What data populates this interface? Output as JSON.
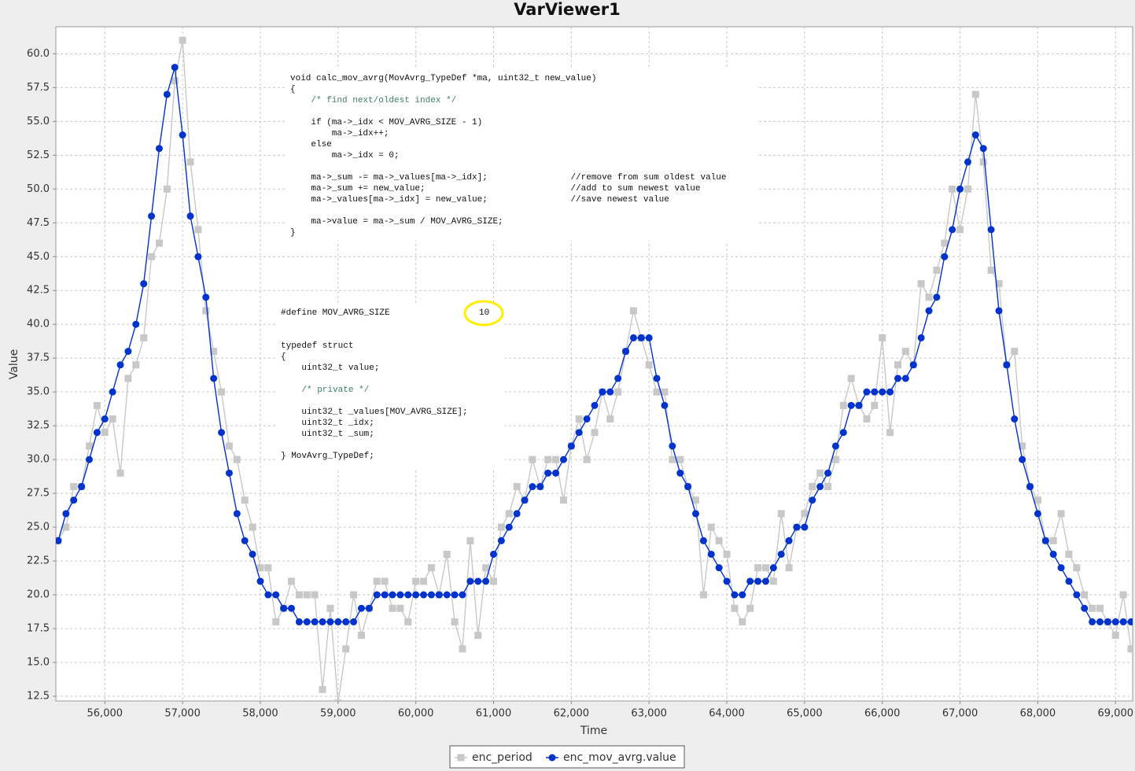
{
  "chart_data": {
    "type": "line",
    "title": "VarViewer1",
    "x_label": "Time",
    "y_label": "Value",
    "x": [
      55400,
      55500,
      55600,
      55700,
      55800,
      55900,
      56000,
      56100,
      56200,
      56300,
      56400,
      56500,
      56600,
      56700,
      56800,
      56900,
      57000,
      57100,
      57200,
      57300,
      57400,
      57500,
      57600,
      57700,
      57800,
      57900,
      58000,
      58100,
      58200,
      58300,
      58400,
      58500,
      58600,
      58700,
      58800,
      58900,
      59000,
      59100,
      59200,
      59300,
      59400,
      59500,
      59600,
      59700,
      59800,
      59900,
      60000,
      60100,
      60200,
      60300,
      60400,
      60500,
      60600,
      60700,
      60800,
      60900,
      61000,
      61100,
      61200,
      61300,
      61400,
      61500,
      61600,
      61700,
      61800,
      61900,
      62000,
      62100,
      62200,
      62300,
      62400,
      62500,
      62600,
      62700,
      62800,
      62900,
      63000,
      63100,
      63200,
      63300,
      63400,
      63500,
      63600,
      63700,
      63800,
      63900,
      64000,
      64100,
      64200,
      64300,
      64400,
      64500,
      64600,
      64700,
      64800,
      64900,
      65000,
      65100,
      65200,
      65300,
      65400,
      65500,
      65600,
      65700,
      65800,
      65900,
      66000,
      66100,
      66200,
      66300,
      66400,
      66500,
      66600,
      66700,
      66800,
      66900,
      67000,
      67100,
      67200,
      67300,
      67400,
      67500,
      67600,
      67700,
      67800,
      67900,
      68000,
      68100,
      68200,
      68300,
      68400,
      68500,
      68600,
      68700,
      68800,
      68900,
      69000,
      69100,
      69200
    ],
    "series": [
      {
        "name": "enc_period",
        "color": "#c8c8c8",
        "marker": "square",
        "values": [
          24,
          25,
          28,
          28,
          31,
          34,
          32,
          33,
          29,
          36,
          37,
          39,
          45,
          46,
          50,
          58,
          61,
          52,
          47,
          41,
          38,
          35,
          31,
          30,
          27,
          25,
          22,
          22,
          18,
          19,
          21,
          20,
          20,
          20,
          13,
          19,
          12,
          16,
          20,
          17,
          19,
          21,
          21,
          19,
          19,
          18,
          21,
          21,
          22,
          20,
          23,
          18,
          16,
          24,
          17,
          22,
          21,
          25,
          26,
          28,
          27,
          30,
          28,
          30,
          30,
          27,
          31,
          33,
          30,
          32,
          35,
          33,
          35,
          38,
          41,
          39,
          37,
          35,
          35,
          30,
          30,
          28,
          27,
          20,
          25,
          24,
          23,
          19,
          18,
          19,
          22,
          22,
          21,
          26,
          22,
          25,
          26,
          28,
          29,
          28,
          30,
          34,
          36,
          34,
          33,
          34,
          39,
          32,
          37,
          38,
          37,
          43,
          42,
          44,
          46,
          50,
          47,
          50,
          57,
          52,
          44,
          43,
          37,
          38,
          31,
          28,
          27,
          24,
          24,
          26,
          23,
          22,
          20,
          19,
          19,
          18,
          17,
          20,
          16
        ]
      },
      {
        "name": "enc_mov_avrg.value",
        "color": "#0033cc",
        "marker": "circle",
        "values": [
          24,
          26,
          27,
          28,
          30,
          32,
          33,
          35,
          37,
          38,
          40,
          43,
          48,
          53,
          57,
          59,
          54,
          48,
          45,
          42,
          36,
          32,
          29,
          26,
          24,
          23,
          21,
          20,
          20,
          19,
          19,
          18,
          18,
          18,
          18,
          18,
          18,
          18,
          18,
          19,
          19,
          20,
          20,
          20,
          20,
          20,
          20,
          20,
          20,
          20,
          20,
          20,
          20,
          21,
          21,
          21,
          23,
          24,
          25,
          26,
          27,
          28,
          28,
          29,
          29,
          30,
          31,
          32,
          33,
          34,
          35,
          35,
          36,
          38,
          39,
          39,
          39,
          36,
          34,
          31,
          29,
          28,
          26,
          24,
          23,
          22,
          21,
          20,
          20,
          21,
          21,
          21,
          22,
          23,
          24,
          25,
          25,
          27,
          28,
          29,
          31,
          32,
          34,
          34,
          35,
          35,
          35,
          35,
          36,
          36,
          37,
          39,
          41,
          42,
          45,
          47,
          50,
          52,
          54,
          53,
          47,
          41,
          37,
          33,
          30,
          28,
          26,
          24,
          23,
          22,
          21,
          20,
          19,
          18,
          18,
          18,
          18,
          18,
          18
        ]
      }
    ],
    "xlim": [
      55370,
      69220
    ],
    "ylim": [
      12.15,
      62
    ],
    "xticks": [
      {
        "value": 56000,
        "label": "56,000"
      },
      {
        "value": 57000,
        "label": "57,000"
      },
      {
        "value": 58000,
        "label": "58,000"
      },
      {
        "value": 59000,
        "label": "59,000"
      },
      {
        "value": 60000,
        "label": "60,000"
      },
      {
        "value": 61000,
        "label": "61,000"
      },
      {
        "value": 62000,
        "label": "62,000"
      },
      {
        "value": 63000,
        "label": "63,000"
      },
      {
        "value": 64000,
        "label": "64,000"
      },
      {
        "value": 65000,
        "label": "65,000"
      },
      {
        "value": 66000,
        "label": "66,000"
      },
      {
        "value": 67000,
        "label": "67,000"
      },
      {
        "value": 68000,
        "label": "68,000"
      },
      {
        "value": 69000,
        "label": "69,000"
      }
    ],
    "yticks": [
      12.5,
      {
        "value": 15,
        "label": "15.0"
      },
      17.5,
      {
        "value": 20,
        "label": "20.0"
      },
      22.5,
      {
        "value": 25,
        "label": "25.0"
      },
      27.5,
      {
        "value": 30,
        "label": "30.0"
      },
      32.5,
      {
        "value": 35,
        "label": "35.0"
      },
      37.5,
      {
        "value": 40,
        "label": "40.0"
      },
      42.5,
      {
        "value": 45,
        "label": "45.0"
      },
      47.5,
      {
        "value": 50,
        "label": "50.0"
      },
      52.5,
      {
        "value": 55,
        "label": "55.0"
      },
      57.5,
      {
        "value": 60,
        "label": "60.0"
      }
    ],
    "grid": true,
    "legend": "bottom",
    "annotations": [
      {
        "blocks": [
          [
            "void calc_mov_avrg(MovAvrg_TypeDef *ma, uint32_t new_value)",
            "{",
            "    /* find next/oldest index */"
          ],
          [
            "    if (ma->_idx < MOV_AVRG_SIZE - 1)",
            "        ma->_idx++;",
            "    else",
            "        ma->_idx = 0;"
          ],
          [
            "    ma->_sum -= ma->_values[ma->_idx];                //remove from sum oldest value",
            "    ma->_sum += new_value;                            //add to sum newest value",
            "    ma->_values[ma->_idx] = new_value;                //save newest value"
          ],
          [
            "    ma->value = ma->_sum / MOV_AVRG_SIZE;",
            "}"
          ]
        ]
      },
      {
        "define_name": "#define MOV_AVRG_SIZE",
        "define_value": "10",
        "blocks": [
          [
            "typedef struct",
            "{",
            "    uint32_t value;"
          ],
          [
            "    /* private */"
          ],
          [
            "    uint32_t _values[MOV_AVRG_SIZE];",
            "    uint32_t _idx;",
            "    uint32_t _sum;"
          ],
          [
            "} MovAvrg_TypeDef;"
          ]
        ]
      }
    ]
  }
}
